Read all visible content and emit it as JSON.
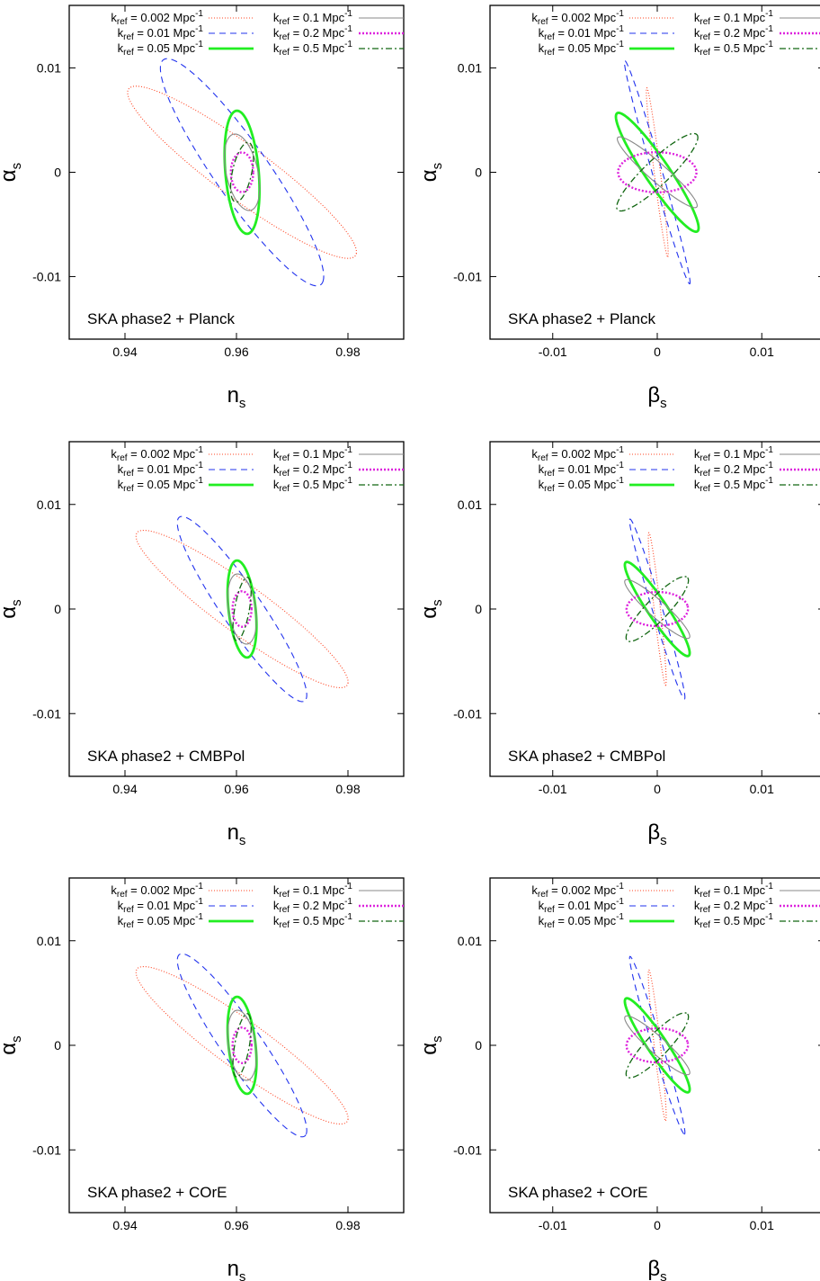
{
  "legend_entries": [
    {
      "k": "0.002",
      "unit": "Mpc",
      "sup": "-1",
      "color": "#ff4422",
      "dash": "1,2",
      "width": 1.1
    },
    {
      "k": "0.01",
      "unit": "Mpc",
      "sup": "-1",
      "color": "#2233ee",
      "dash": "7,5",
      "width": 1.1
    },
    {
      "k": "0.05",
      "unit": "Mpc",
      "sup": "-1",
      "color": "#22ee22",
      "dash": "",
      "width": 2.8
    },
    {
      "k": "0.1",
      "unit": "Mpc",
      "sup": "-1",
      "color": "#888888",
      "dash": "",
      "width": 1.1
    },
    {
      "k": "0.2",
      "unit": "Mpc",
      "sup": "-1",
      "color": "#dd22dd",
      "dash": "2,2",
      "width": 2.4
    },
    {
      "k": "0.5",
      "unit": "Mpc",
      "sup": "-1",
      "color": "#116611",
      "dash": "7,3,2,3",
      "width": 1.3
    }
  ],
  "legend_symbol": "k",
  "legend_symbol_sub": "ref",
  "chart_data": [
    {
      "type": "scatter",
      "panel": "top-left",
      "annotation": "SKA phase2 + Planck",
      "xlabel": "n",
      "xlabel_sub": "s",
      "ylabel": "α",
      "ylabel_sub": "s",
      "xlim": [
        0.93,
        0.99
      ],
      "ylim": [
        -0.016,
        0.016
      ],
      "xticks": [
        0.94,
        0.96,
        0.98
      ],
      "xtick_labels": [
        "0.94",
        "0.96",
        "0.98"
      ],
      "yticks": [
        -0.01,
        0,
        0.01
      ],
      "ytick_labels": [
        "-0.01",
        "0",
        "0.01"
      ],
      "legend": "top",
      "series": [
        {
          "name": "k_ref = 0.002 Mpc^-1",
          "center": [
            0.961,
            0
          ],
          "p1": [
            0.0205,
            -0.0078
          ],
          "p2": [
            0.0011,
            0.0027
          ]
        },
        {
          "name": "k_ref = 0.01 Mpc^-1",
          "center": [
            0.961,
            0
          ],
          "p1": [
            0.0145,
            -0.0105
          ],
          "p2": [
            0.0021,
            0.0029
          ]
        },
        {
          "name": "k_ref = 0.05 Mpc^-1",
          "center": [
            0.961,
            0
          ],
          "p1": [
            0.0009,
            -0.0059
          ],
          "p2": [
            0.003,
            0
          ]
        },
        {
          "name": "k_ref = 0.1 Mpc^-1",
          "center": [
            0.961,
            0
          ],
          "p1": [
            0.0018,
            -0.0036
          ],
          "p2": [
            0.0026,
            0.0007
          ]
        },
        {
          "name": "k_ref = 0.2 Mpc^-1",
          "center": [
            0.961,
            0
          ],
          "p1": [
            0.002,
            0
          ],
          "p2": [
            0,
            0.0019
          ]
        },
        {
          "name": "k_ref = 0.5 Mpc^-1",
          "center": [
            0.961,
            0
          ],
          "p1": [
            0.0014,
            0.0028
          ],
          "p2": [
            0.0015,
            -0.0006
          ]
        }
      ]
    },
    {
      "type": "scatter",
      "panel": "top-right",
      "annotation": "SKA phase2 + Planck",
      "xlabel": "β",
      "xlabel_sub": "s",
      "ylabel": "α",
      "ylabel_sub": "s",
      "xlim": [
        -0.016,
        0.016
      ],
      "ylim": [
        -0.016,
        0.016
      ],
      "xticks": [
        -0.01,
        0,
        0.01
      ],
      "xtick_labels": [
        "-0.01",
        "0",
        "0.01"
      ],
      "yticks": [
        -0.01,
        0,
        0.01
      ],
      "ytick_labels": [
        "-0.01",
        "0",
        "0.01"
      ],
      "legend": "top",
      "series": [
        {
          "name": "k_ref = 0.002 Mpc^-1",
          "center": [
            0,
            0
          ],
          "p1": [
            0.001,
            -0.0081
          ],
          "p2": [
            0.0003,
            0
          ]
        },
        {
          "name": "k_ref = 0.01 Mpc^-1",
          "center": [
            0,
            0
          ],
          "p1": [
            0.0031,
            -0.0107
          ],
          "p2": [
            0.0005,
            0
          ]
        },
        {
          "name": "k_ref = 0.05 Mpc^-1",
          "center": [
            0,
            0
          ],
          "p1": [
            0.0037,
            -0.0057
          ],
          "p2": [
            0.0014,
            0
          ]
        },
        {
          "name": "k_ref = 0.1 Mpc^-1",
          "center": [
            0,
            0
          ],
          "p1": [
            0.0038,
            -0.0033
          ],
          "p2": [
            0.0004,
            0.0008
          ]
        },
        {
          "name": "k_ref = 0.2 Mpc^-1",
          "center": [
            0,
            0
          ],
          "p1": [
            0.0037,
            0.0003
          ],
          "p2": [
            0.0006,
            -0.0019
          ]
        },
        {
          "name": "k_ref = 0.5 Mpc^-1",
          "center": [
            0,
            0
          ],
          "p1": [
            0.0038,
            0.0036
          ],
          "p2": [
            0.0008,
            -0.0009
          ]
        }
      ]
    },
    {
      "type": "scatter",
      "panel": "middle-left",
      "annotation": "SKA phase2 + CMBPol",
      "xlabel": "n",
      "xlabel_sub": "s",
      "ylabel": "α",
      "ylabel_sub": "s",
      "xlim": [
        0.93,
        0.99
      ],
      "ylim": [
        -0.016,
        0.016
      ],
      "xticks": [
        0.94,
        0.96,
        0.98
      ],
      "xtick_labels": [
        "0.94",
        "0.96",
        "0.98"
      ],
      "yticks": [
        -0.01,
        0,
        0.01
      ],
      "ytick_labels": [
        "-0.01",
        "0",
        "0.01"
      ],
      "legend": "top",
      "series": [
        {
          "name": "k_ref = 0.002 Mpc^-1",
          "center": [
            0.961,
            0
          ],
          "p1": [
            0.019,
            -0.0071
          ],
          "p2": [
            0.0009,
            0.0025
          ]
        },
        {
          "name": "k_ref = 0.01 Mpc^-1",
          "center": [
            0.961,
            0
          ],
          "p1": [
            0.0115,
            -0.0086
          ],
          "p2": [
            0.0016,
            0.0021
          ]
        },
        {
          "name": "k_ref = 0.05 Mpc^-1",
          "center": [
            0.961,
            0
          ],
          "p1": [
            0.0012,
            -0.0046
          ],
          "p2": [
            0.0023,
            0.0006
          ]
        },
        {
          "name": "k_ref = 0.1 Mpc^-1",
          "center": [
            0.961,
            0
          ],
          "p1": [
            0.0015,
            -0.0032
          ],
          "p2": [
            0.0021,
            0.001
          ]
        },
        {
          "name": "k_ref = 0.2 Mpc^-1",
          "center": [
            0.961,
            0
          ],
          "p1": [
            0.0017,
            0
          ],
          "p2": [
            0,
            0.0017
          ]
        },
        {
          "name": "k_ref = 0.5 Mpc^-1",
          "center": [
            0.961,
            0
          ],
          "p1": [
            0.0011,
            0.003
          ],
          "p2": [
            0.0012,
            -0.0004
          ]
        }
      ]
    },
    {
      "type": "scatter",
      "panel": "middle-right",
      "annotation": "SKA phase2 + CMBPol",
      "xlabel": "β",
      "xlabel_sub": "s",
      "ylabel": "α",
      "ylabel_sub": "s",
      "xlim": [
        -0.016,
        0.016
      ],
      "ylim": [
        -0.016,
        0.016
      ],
      "xticks": [
        -0.01,
        0,
        0.01
      ],
      "xtick_labels": [
        "-0.01",
        "0",
        "0.01"
      ],
      "yticks": [
        -0.01,
        0,
        0.01
      ],
      "ytick_labels": [
        "-0.01",
        "0",
        "0.01"
      ],
      "legend": "top",
      "series": [
        {
          "name": "k_ref = 0.002 Mpc^-1",
          "center": [
            0,
            0
          ],
          "p1": [
            0.0008,
            -0.0073
          ],
          "p2": [
            0.0003,
            0
          ]
        },
        {
          "name": "k_ref = 0.01 Mpc^-1",
          "center": [
            0,
            0
          ],
          "p1": [
            0.0026,
            -0.0086
          ],
          "p2": [
            0.0005,
            0
          ]
        },
        {
          "name": "k_ref = 0.05 Mpc^-1",
          "center": [
            0,
            0
          ],
          "p1": [
            0.0029,
            -0.0045
          ],
          "p2": [
            0.0011,
            0
          ]
        },
        {
          "name": "k_ref = 0.1 Mpc^-1",
          "center": [
            0,
            0
          ],
          "p1": [
            0.0031,
            -0.0027
          ],
          "p2": [
            0.0003,
            0.0008
          ]
        },
        {
          "name": "k_ref = 0.2 Mpc^-1",
          "center": [
            0,
            0
          ],
          "p1": [
            0.0029,
            0.0003
          ],
          "p2": [
            0.0005,
            -0.0016
          ]
        },
        {
          "name": "k_ref = 0.5 Mpc^-1",
          "center": [
            0,
            0
          ],
          "p1": [
            0.0029,
            0.003
          ],
          "p2": [
            0.0007,
            -0.0008
          ]
        }
      ]
    },
    {
      "type": "scatter",
      "panel": "bottom-left",
      "annotation": "SKA phase2 + COrE",
      "xlabel": "n",
      "xlabel_sub": "s",
      "ylabel": "α",
      "ylabel_sub": "s",
      "xlim": [
        0.93,
        0.99
      ],
      "ylim": [
        -0.016,
        0.016
      ],
      "xticks": [
        0.94,
        0.96,
        0.98
      ],
      "xtick_labels": [
        "0.94",
        "0.96",
        "0.98"
      ],
      "yticks": [
        -0.01,
        0,
        0.01
      ],
      "ytick_labels": [
        "-0.01",
        "0",
        "0.01"
      ],
      "legend": "top",
      "series": [
        {
          "name": "k_ref = 0.002 Mpc^-1",
          "center": [
            0.961,
            0
          ],
          "p1": [
            0.019,
            -0.0071
          ],
          "p2": [
            0.0009,
            0.0025
          ]
        },
        {
          "name": "k_ref = 0.01 Mpc^-1",
          "center": [
            0.961,
            0
          ],
          "p1": [
            0.0115,
            -0.0085
          ],
          "p2": [
            0.0016,
            0.0021
          ]
        },
        {
          "name": "k_ref = 0.05 Mpc^-1",
          "center": [
            0.961,
            0
          ],
          "p1": [
            0.0012,
            -0.0046
          ],
          "p2": [
            0.0023,
            0.0006
          ]
        },
        {
          "name": "k_ref = 0.1 Mpc^-1",
          "center": [
            0.961,
            0
          ],
          "p1": [
            0.0015,
            -0.0032
          ],
          "p2": [
            0.0021,
            0.001
          ]
        },
        {
          "name": "k_ref = 0.2 Mpc^-1",
          "center": [
            0.961,
            0
          ],
          "p1": [
            0.0017,
            0
          ],
          "p2": [
            0,
            0.0017
          ]
        },
        {
          "name": "k_ref = 0.5 Mpc^-1",
          "center": [
            0.961,
            0
          ],
          "p1": [
            0.0011,
            0.003
          ],
          "p2": [
            0.0012,
            -0.0004
          ]
        }
      ]
    },
    {
      "type": "scatter",
      "panel": "bottom-right",
      "annotation": "SKA phase2 + COrE",
      "xlabel": "β",
      "xlabel_sub": "s",
      "ylabel": "α",
      "ylabel_sub": "s",
      "xlim": [
        -0.016,
        0.016
      ],
      "ylim": [
        -0.016,
        0.016
      ],
      "xticks": [
        -0.01,
        0,
        0.01
      ],
      "xtick_labels": [
        "-0.01",
        "0",
        "0.01"
      ],
      "yticks": [
        -0.01,
        0,
        0.01
      ],
      "ytick_labels": [
        "-0.01",
        "0",
        "0.01"
      ],
      "legend": "top",
      "series": [
        {
          "name": "k_ref = 0.002 Mpc^-1",
          "center": [
            0,
            0
          ],
          "p1": [
            0.0008,
            -0.0072
          ],
          "p2": [
            0.0003,
            0
          ]
        },
        {
          "name": "k_ref = 0.01 Mpc^-1",
          "center": [
            0,
            0
          ],
          "p1": [
            0.0026,
            -0.0085
          ],
          "p2": [
            0.0005,
            0
          ]
        },
        {
          "name": "k_ref = 0.05 Mpc^-1",
          "center": [
            0,
            0
          ],
          "p1": [
            0.0029,
            -0.0045
          ],
          "p2": [
            0.0011,
            0
          ]
        },
        {
          "name": "k_ref = 0.1 Mpc^-1",
          "center": [
            0,
            0
          ],
          "p1": [
            0.0031,
            -0.0027
          ],
          "p2": [
            0.0003,
            0.0008
          ]
        },
        {
          "name": "k_ref = 0.2 Mpc^-1",
          "center": [
            0,
            0
          ],
          "p1": [
            0.0029,
            0.0003
          ],
          "p2": [
            0.0005,
            -0.0016
          ]
        },
        {
          "name": "k_ref = 0.5 Mpc^-1",
          "center": [
            0,
            0
          ],
          "p1": [
            0.0029,
            0.003
          ],
          "p2": [
            0.0007,
            -0.0008
          ]
        }
      ]
    }
  ]
}
